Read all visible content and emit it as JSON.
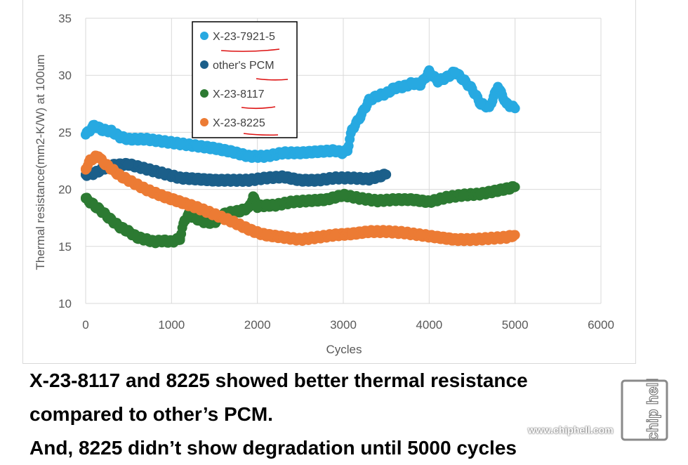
{
  "chart_data": {
    "type": "scatter",
    "title": "",
    "xlabel": "Cycles",
    "ylabel": "Thermal resistance(mm2-K/W)  at 100um",
    "xlim": [
      0,
      6000
    ],
    "ylim": [
      10,
      35
    ],
    "xticks": [
      0,
      1000,
      2000,
      3000,
      4000,
      5000,
      6000
    ],
    "yticks": [
      10,
      15,
      20,
      25,
      30,
      35
    ],
    "grid": true,
    "legend_position": "top-center",
    "series": [
      {
        "name": "X-23-7921-5",
        "color": "#27a9e1",
        "x": [
          0,
          100,
          200,
          300,
          400,
          500,
          700,
          900,
          1100,
          1300,
          1500,
          1700,
          1900,
          2100,
          2300,
          2500,
          2700,
          2900,
          3000,
          3050,
          3100,
          3200,
          3300,
          3400,
          3500,
          3600,
          3700,
          3800,
          3900,
          4000,
          4100,
          4200,
          4300,
          4400,
          4500,
          4600,
          4700,
          4800,
          4900,
          5000
        ],
        "y": [
          24.8,
          25.6,
          25.2,
          25.1,
          24.6,
          24.4,
          24.4,
          24.2,
          24,
          23.8,
          23.6,
          23.3,
          22.9,
          22.9,
          23.2,
          23.2,
          23.3,
          23.4,
          23.2,
          23.5,
          25.2,
          26.4,
          27.8,
          28.2,
          28.4,
          28.9,
          29,
          29.3,
          29.2,
          30.3,
          29.5,
          29.8,
          30.3,
          29.6,
          28.8,
          27.5,
          27.2,
          29,
          27.5,
          27.1
        ]
      },
      {
        "name": "other's PCM",
        "color": "#1b5f8a",
        "x": [
          0,
          100,
          200,
          300,
          500,
          700,
          900,
          1100,
          1300,
          1500,
          1700,
          1900,
          2100,
          2300,
          2500,
          2700,
          2900,
          3100,
          3300,
          3500
        ],
        "y": [
          21.3,
          21.4,
          21.8,
          22.1,
          22.2,
          21.8,
          21.4,
          21,
          20.9,
          20.8,
          20.8,
          20.8,
          21,
          21.1,
          20.8,
          20.8,
          21,
          21,
          20.9,
          21.3
        ]
      },
      {
        "name": "X-23-8117",
        "color": "#2c7a32",
        "x": [
          0,
          100,
          200,
          300,
          400,
          500,
          600,
          700,
          800,
          900,
          1000,
          1100,
          1150,
          1200,
          1300,
          1400,
          1500,
          1600,
          1700,
          1800,
          1900,
          1950,
          2000,
          2100,
          2200,
          2400,
          2600,
          2800,
          3000,
          3200,
          3400,
          3600,
          3800,
          4000,
          4200,
          4400,
          4600,
          4800,
          5000
        ],
        "y": [
          19.2,
          18.6,
          18,
          17.3,
          16.7,
          16.3,
          15.8,
          15.6,
          15.4,
          15.5,
          15.4,
          15.7,
          17.3,
          17.8,
          17.4,
          17.1,
          17.1,
          17.8,
          18,
          18.1,
          18.4,
          19.4,
          18.5,
          18.6,
          18.6,
          18.9,
          19,
          19.1,
          19.5,
          19.2,
          19,
          19.1,
          19.1,
          18.9,
          19.3,
          19.5,
          19.6,
          19.9,
          20.2
        ]
      },
      {
        "name": "X-23-8225",
        "color": "#ec7b34",
        "x": [
          0,
          50,
          100,
          150,
          200,
          300,
          400,
          500,
          700,
          900,
          1100,
          1300,
          1500,
          1700,
          1900,
          2000,
          2100,
          2300,
          2500,
          2700,
          2900,
          3100,
          3300,
          3500,
          3700,
          3900,
          4100,
          4300,
          4500,
          4700,
          4900,
          5000
        ],
        "y": [
          21.8,
          22.5,
          22.8,
          22.9,
          22.4,
          21.8,
          21.2,
          20.8,
          20,
          19.4,
          18.9,
          18.4,
          17.8,
          17.2,
          16.5,
          16.2,
          16,
          15.8,
          15.6,
          15.8,
          16,
          16.1,
          16.3,
          16.3,
          16.2,
          16,
          15.8,
          15.6,
          15.6,
          15.7,
          15.8,
          16
        ]
      }
    ]
  },
  "caption": {
    "line1": "X-23-8117 and 8225 showed better thermal resistance",
    "line2": "compared to other’s PCM.",
    "line3": "And, 8225 didn’t show degradation until 5000 cycles"
  },
  "watermark": {
    "logo_text": "chip hell",
    "url": "www.chiphell.com"
  }
}
